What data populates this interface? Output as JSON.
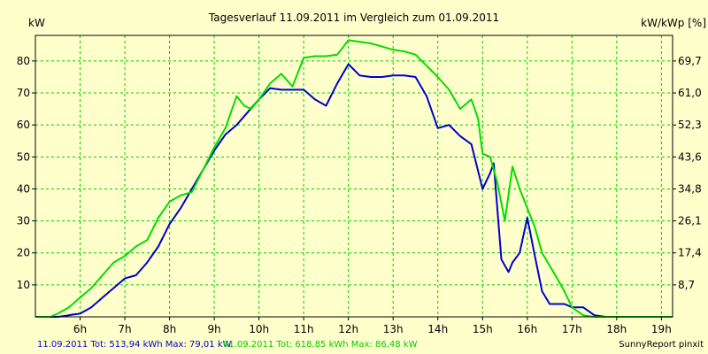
{
  "chart_data": {
    "type": "line",
    "title": "Tagesverlauf 11.09.2011 im Vergleich zum 01.09.2011",
    "ylabel_left": "kW",
    "ylabel_right": "kW/kWp [%]",
    "xlim": [
      5.0,
      19.25
    ],
    "ylim": [
      0,
      88
    ],
    "x_ticks": [
      6,
      7,
      8,
      9,
      10,
      11,
      12,
      13,
      14,
      15,
      16,
      17,
      18,
      19
    ],
    "x_tick_labels": [
      "6h",
      "7h",
      "8h",
      "9h",
      "10h",
      "11h",
      "12h",
      "13h",
      "14h",
      "15h",
      "16h",
      "17h",
      "18h",
      "19h"
    ],
    "y_ticks_left": [
      10,
      20,
      30,
      40,
      50,
      60,
      70,
      80
    ],
    "y_tick_labels_left": [
      "10",
      "20",
      "30",
      "40",
      "50",
      "60",
      "70",
      "80"
    ],
    "y_ticks_right": [
      8.7,
      17.4,
      26.1,
      34.8,
      43.6,
      52.3,
      61.0,
      69.7
    ],
    "y_tick_labels_right": [
      "8,7",
      "17,4",
      "26,1",
      "34,8",
      "43,6",
      "52,3",
      "61,0",
      "69,7"
    ],
    "grid": true,
    "colors": {
      "background": "#ffffcc",
      "grid": "#00cc00",
      "axis": "#000000"
    },
    "series": [
      {
        "color": "#0000cc",
        "legend_text": "11.09.2011 Tot: 513,94 kWh Max: 79,01 kW",
        "x": [
          5.0,
          5.33,
          5.5,
          5.67,
          5.83,
          6.0,
          6.25,
          6.5,
          6.75,
          7.0,
          7.25,
          7.5,
          7.75,
          8.0,
          8.25,
          8.5,
          8.75,
          9.0,
          9.25,
          9.5,
          9.75,
          10.0,
          10.25,
          10.5,
          10.75,
          11.0,
          11.25,
          11.5,
          11.75,
          12.0,
          12.25,
          12.5,
          12.75,
          13.0,
          13.25,
          13.5,
          13.75,
          14.0,
          14.25,
          14.5,
          14.75,
          15.0,
          15.17,
          15.25,
          15.42,
          15.58,
          15.67,
          15.83,
          16.0,
          16.17,
          16.33,
          16.5,
          16.67,
          16.83,
          17.0,
          17.25,
          17.5,
          17.75,
          18.0,
          18.25,
          18.5
        ],
        "y": [
          0,
          0,
          0,
          0.3,
          0.7,
          1.0,
          3.0,
          6.0,
          9.0,
          12.0,
          13.0,
          17.0,
          22.0,
          29.0,
          34.0,
          40.0,
          46.0,
          52.0,
          57.0,
          60.0,
          64.0,
          68.0,
          71.5,
          71.0,
          71.0,
          71.0,
          68.0,
          66.0,
          73.0,
          79.0,
          75.5,
          75.0,
          75.0,
          75.5,
          75.5,
          75.0,
          69.0,
          59.0,
          60.0,
          56.5,
          54.0,
          40.0,
          45.0,
          48.0,
          18.0,
          14.0,
          17.0,
          20.0,
          31.0,
          19.0,
          8.0,
          4.0,
          4.0,
          4.0,
          3.0,
          3.0,
          0.5,
          0,
          0,
          0,
          0
        ]
      },
      {
        "color": "#00dd00",
        "legend_text": "01.09.2011 Tot: 618,85 kWh Max: 86,48 kW",
        "x": [
          5.0,
          5.33,
          5.5,
          5.75,
          6.0,
          6.25,
          6.5,
          6.75,
          7.0,
          7.25,
          7.5,
          7.75,
          8.0,
          8.25,
          8.5,
          8.75,
          9.0,
          9.25,
          9.5,
          9.67,
          9.83,
          10.0,
          10.25,
          10.5,
          10.75,
          11.0,
          11.25,
          11.5,
          11.75,
          12.0,
          12.25,
          12.5,
          12.75,
          13.0,
          13.25,
          13.5,
          13.75,
          14.0,
          14.25,
          14.5,
          14.75,
          14.9,
          15.0,
          15.17,
          15.33,
          15.5,
          15.67,
          15.83,
          16.0,
          16.17,
          16.33,
          16.5,
          16.67,
          16.83,
          17.0,
          17.25,
          17.5,
          17.75,
          18.0,
          18.25,
          18.5,
          18.75,
          19.0,
          19.25
        ],
        "y": [
          0,
          0,
          1.0,
          3.0,
          6.0,
          9.0,
          13.0,
          17.0,
          19.0,
          22.0,
          24.0,
          31.0,
          36.0,
          38.0,
          39.0,
          46.0,
          53.0,
          59.0,
          69.0,
          66.0,
          65.0,
          68.0,
          73.0,
          76.0,
          72.0,
          81.0,
          81.5,
          81.5,
          82.0,
          86.5,
          86.0,
          85.5,
          84.5,
          83.5,
          83.0,
          82.0,
          78.5,
          75.0,
          71.0,
          65.0,
          68.0,
          62.0,
          51.0,
          50.0,
          42.0,
          30.0,
          47.0,
          40.0,
          34.0,
          28.0,
          20.0,
          16.0,
          12.0,
          8.0,
          3.0,
          0.5,
          0,
          0,
          0,
          0,
          0,
          0,
          0,
          0
        ]
      }
    ],
    "footer_right": "SunnyReport pinxit"
  }
}
